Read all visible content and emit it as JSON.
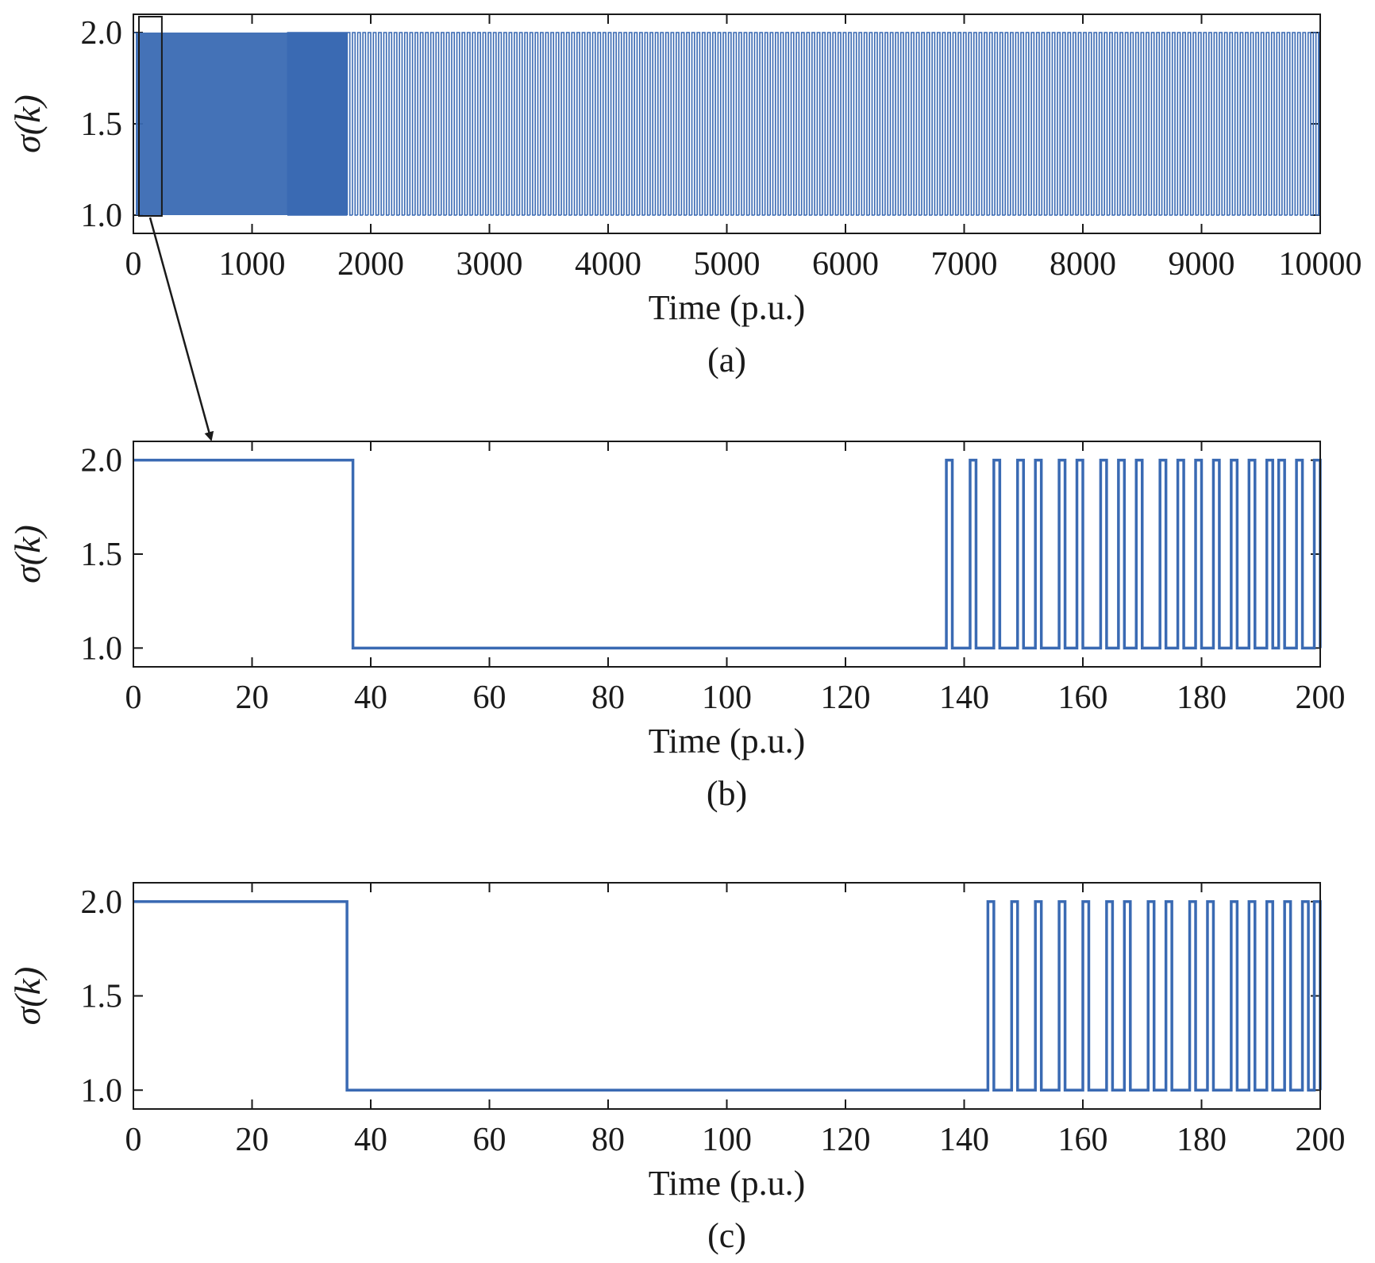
{
  "figure": {
    "line_color": "#3a6ab3",
    "axis_color": "#1a1a1a",
    "zoom_annotation": "panel (a) boxed region 0–200 enlarged in panel (b) via arrow"
  },
  "chart_data": [
    {
      "type": "line",
      "panel_label": "(a)",
      "xlabel": "Time (p.u.)",
      "ylabel": "σ(k)",
      "xlim": [
        0,
        10000
      ],
      "ylim": [
        0.9,
        2.1
      ],
      "xticks": [
        "0",
        "1000",
        "2000",
        "3000",
        "4000",
        "5000",
        "6000",
        "7000",
        "8000",
        "9000",
        "10000"
      ],
      "yticks": [
        "1.0",
        "1.5",
        "2.0"
      ],
      "grid": false,
      "style": "step",
      "series": [
        {
          "values_description": "Switching signal alternating between 1 and 2; very dense switching from about 20 to 1800, then regular switching roughly every 40–50 p.u. until 10000",
          "levels": [
            1,
            2
          ],
          "x_start": 0,
          "x_end": 10000
        }
      ]
    },
    {
      "type": "line",
      "panel_label": "(b)",
      "xlabel": "Time (p.u.)",
      "ylabel": "σ(k)",
      "xlim": [
        0,
        200
      ],
      "ylim": [
        0.9,
        2.1
      ],
      "xticks": [
        "0",
        "20",
        "40",
        "60",
        "80",
        "100",
        "120",
        "140",
        "160",
        "180",
        "200"
      ],
      "yticks": [
        "1.0",
        "1.5",
        "2.0"
      ],
      "grid": false,
      "style": "step",
      "series": [
        {
          "pulses_at_2": [
            [
              0,
              37
            ],
            [
              137,
              138
            ],
            [
              141,
              142
            ],
            [
              145,
              146
            ],
            [
              149,
              150
            ],
            [
              152,
              153
            ],
            [
              156,
              157
            ],
            [
              159,
              160
            ],
            [
              163,
              164
            ],
            [
              166,
              167
            ],
            [
              169,
              170
            ],
            [
              173,
              174
            ],
            [
              176,
              177
            ],
            [
              179,
              180
            ],
            [
              182,
              183
            ],
            [
              185,
              186
            ],
            [
              188,
              189
            ],
            [
              191,
              192
            ],
            [
              193,
              194
            ],
            [
              196,
              197
            ],
            [
              199,
              200
            ]
          ],
          "base_level": 1
        }
      ]
    },
    {
      "type": "line",
      "panel_label": "(c)",
      "xlabel": "Time (p.u.)",
      "ylabel": "σ(k)",
      "xlim": [
        0,
        200
      ],
      "ylim": [
        0.9,
        2.1
      ],
      "xticks": [
        "0",
        "20",
        "40",
        "60",
        "80",
        "100",
        "120",
        "140",
        "160",
        "180",
        "200"
      ],
      "yticks": [
        "1.0",
        "1.5",
        "2.0"
      ],
      "grid": false,
      "style": "step",
      "series": [
        {
          "pulses_at_2": [
            [
              0,
              36
            ],
            [
              144,
              145
            ],
            [
              148,
              149
            ],
            [
              152,
              153
            ],
            [
              156,
              157
            ],
            [
              160,
              161
            ],
            [
              164,
              165
            ],
            [
              167,
              168
            ],
            [
              171,
              172
            ],
            [
              174,
              175
            ],
            [
              178,
              179
            ],
            [
              181,
              182
            ],
            [
              185,
              186
            ],
            [
              188,
              189
            ],
            [
              191,
              192
            ],
            [
              194,
              195
            ],
            [
              197,
              198
            ],
            [
              199,
              200
            ]
          ],
          "base_level": 1
        }
      ]
    }
  ]
}
